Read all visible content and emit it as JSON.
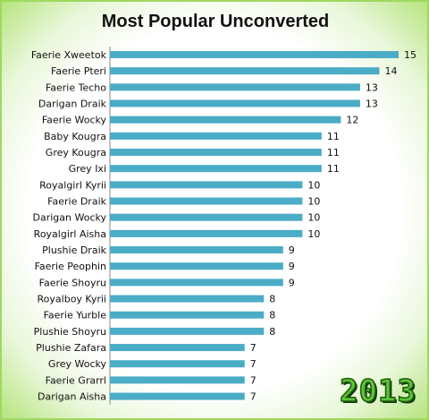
{
  "chart_data": {
    "type": "bar",
    "orientation": "horizontal",
    "title": "Most Popular Unconverted",
    "xlabel": "",
    "ylabel": "",
    "xlim": [
      0,
      15
    ],
    "grid": false,
    "legend": "none",
    "bar_color": "#4bacc6",
    "categories": [
      "Faerie Xweetok",
      "Faerie Pteri",
      "Faerie Techo",
      "Darigan Draik",
      "Faerie Wocky",
      "Baby Kougra",
      "Grey Kougra",
      "Grey Ixi",
      "Royalgirl Kyrii",
      "Faerie Draik",
      "Darigan Wocky",
      "Royalgirl Aisha",
      "Plushie Draik",
      "Faerie Peophin",
      "Faerie Shoyru",
      "Royalboy Kyrii",
      "Faerie Yurble",
      "Plushie Shoyru",
      "Plushie Zafara",
      "Grey Wocky",
      "Faerie Grarrl",
      "Darigan Aisha"
    ],
    "values": [
      15,
      14,
      13,
      13,
      12,
      11,
      11,
      11,
      10,
      10,
      10,
      10,
      9,
      9,
      9,
      8,
      8,
      8,
      7,
      7,
      7,
      7
    ]
  },
  "badge": {
    "text": "2013"
  }
}
